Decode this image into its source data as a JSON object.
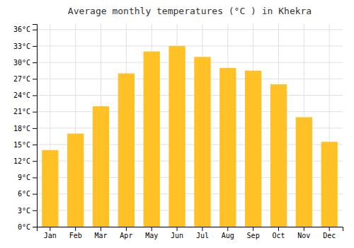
{
  "chart_data": {
    "type": "bar",
    "title": "Average monthly temperatures (°C ) in Khekra",
    "categories": [
      "Jan",
      "Feb",
      "Mar",
      "Apr",
      "May",
      "Jun",
      "Jul",
      "Aug",
      "Sep",
      "Oct",
      "Nov",
      "Dec"
    ],
    "values": [
      14,
      17,
      22,
      28,
      32,
      33,
      31,
      29,
      28.5,
      26,
      20,
      15.5
    ],
    "color": "#FFC125",
    "ylim": [
      0,
      37
    ],
    "yticks": [
      {
        "value": 0,
        "label": "0°C"
      },
      {
        "value": 3,
        "label": "3°C"
      },
      {
        "value": 6,
        "label": "6°C"
      },
      {
        "value": 9,
        "label": "9°C"
      },
      {
        "value": 12,
        "label": "12°C"
      },
      {
        "value": 15,
        "label": "15°C"
      },
      {
        "value": 18,
        "label": "18°C"
      },
      {
        "value": 21,
        "label": "21°C"
      },
      {
        "value": 24,
        "label": "24°C"
      },
      {
        "value": 27,
        "label": "27°C"
      },
      {
        "value": 30,
        "label": "30°C"
      },
      {
        "value": 33,
        "label": "33°C"
      },
      {
        "value": 36,
        "label": "36°C"
      }
    ],
    "grid": true
  }
}
